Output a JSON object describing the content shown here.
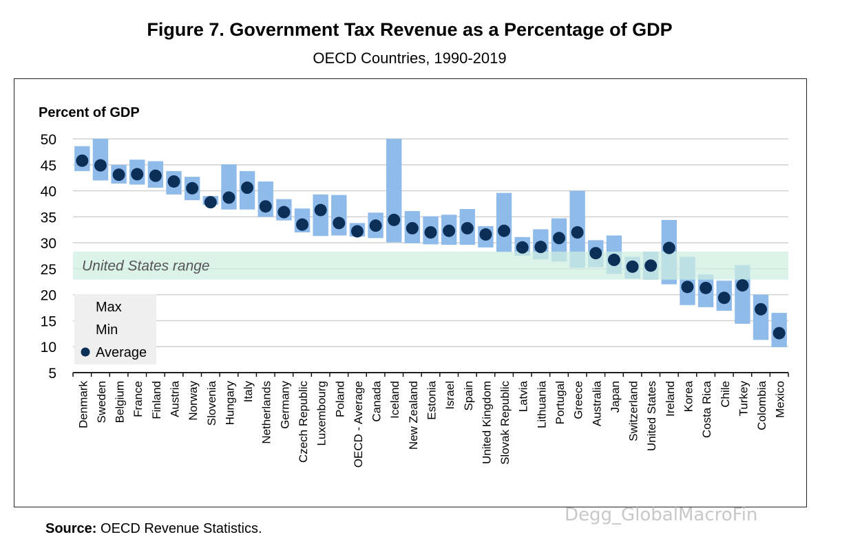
{
  "title": "Figure 7. Government Tax Revenue as a Percentage of GDP",
  "subtitle": "OECD Countries, 1990-2019",
  "source_label": "Source:",
  "source_text": " OECD Revenue Statistics.",
  "watermark": "Degg_GlobalMacroFin",
  "colors": {
    "range_bar": "#8fbbeb",
    "average_dot": "#0b2f57",
    "us_band": "#cfeee2",
    "grid": "#d0d0d0",
    "legend_bg": "#efefef"
  },
  "chart_data": {
    "type": "range-dot",
    "ylabel": "Percent of GDP",
    "ylim": [
      5,
      50
    ],
    "yticks": [
      5,
      10,
      15,
      20,
      25,
      30,
      35,
      40,
      45,
      50
    ],
    "grid": true,
    "band": {
      "label": "United States range",
      "min": 22.9,
      "max": 28.3
    },
    "legend": {
      "position": "bottom-left",
      "items": [
        "Max",
        "Min",
        "Average"
      ]
    },
    "categories": [
      "Denmark",
      "Sweden",
      "Belgium",
      "France",
      "Finland",
      "Austria",
      "Norway",
      "Slovenia",
      "Hungary",
      "Italy",
      "Netherlands",
      "Germany",
      "Czech Republic",
      "Luxembourg",
      "Poland",
      "OECD - Average",
      "Canada",
      "Iceland",
      "New Zealand",
      "Estonia",
      "Israel",
      "Spain",
      "United Kingdom",
      "Slovak Republic",
      "Latvia",
      "Lithuania",
      "Portugal",
      "Greece",
      "Australia",
      "Japan",
      "Switzerland",
      "United States",
      "Ireland",
      "Korea",
      "Costa Rica",
      "Chile",
      "Turkey",
      "Colombia",
      "Mexico"
    ],
    "max": [
      48.6,
      50.0,
      45.0,
      46.0,
      45.7,
      43.8,
      42.7,
      39.0,
      45.1,
      43.8,
      41.8,
      38.4,
      36.6,
      39.3,
      39.2,
      33.8,
      35.8,
      50.0,
      36.1,
      35.1,
      35.4,
      36.5,
      33.2,
      39.6,
      31.1,
      32.6,
      34.7,
      40.0,
      30.5,
      31.4,
      27.3,
      28.3,
      34.4,
      27.3,
      23.9,
      22.7,
      25.7,
      20.0,
      16.5
    ],
    "min": [
      43.8,
      42.0,
      41.4,
      41.2,
      40.6,
      39.3,
      38.2,
      37.3,
      36.4,
      36.4,
      35.0,
      34.3,
      32.0,
      31.3,
      31.4,
      31.2,
      30.9,
      30.1,
      29.9,
      29.7,
      29.6,
      29.6,
      29.1,
      28.2,
      27.5,
      26.8,
      26.4,
      25.2,
      25.3,
      24.0,
      23.1,
      22.9,
      22.0,
      18.0,
      17.6,
      16.9,
      14.4,
      11.3,
      9.9
    ],
    "average": [
      45.8,
      44.9,
      43.1,
      43.2,
      42.9,
      41.8,
      40.5,
      37.8,
      38.7,
      40.6,
      37.0,
      35.9,
      33.5,
      36.3,
      33.8,
      32.2,
      33.3,
      34.4,
      32.8,
      32.0,
      32.3,
      32.8,
      31.6,
      32.3,
      29.1,
      29.2,
      30.9,
      32.0,
      28.0,
      26.7,
      25.4,
      25.6,
      29.0,
      21.5,
      21.3,
      19.4,
      21.8,
      17.2,
      12.6
    ]
  }
}
